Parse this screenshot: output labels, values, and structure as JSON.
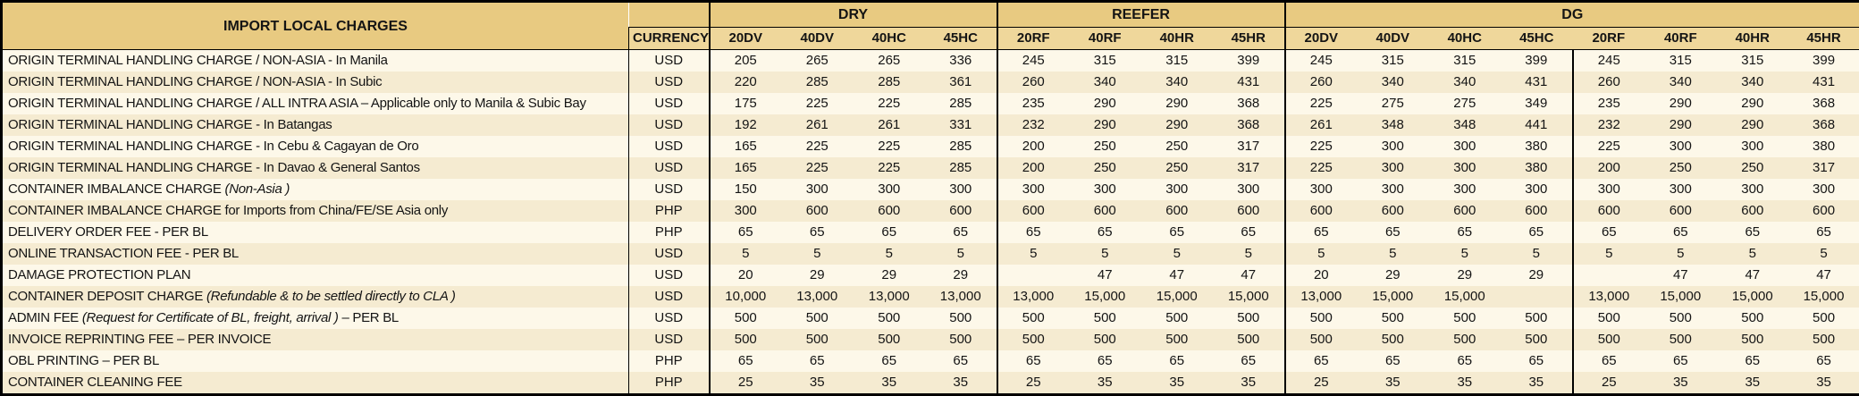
{
  "table": {
    "title": "IMPORT LOCAL CHARGES",
    "currency_header": "CURRENCY",
    "groups": [
      {
        "label": "DRY",
        "columns": [
          "20DV",
          "40DV",
          "40HC",
          "45HC"
        ]
      },
      {
        "label": "REEFER",
        "columns": [
          "20RF",
          "40RF",
          "40HR",
          "45HR"
        ]
      },
      {
        "label": "DG",
        "columns": [
          "20DV",
          "40DV",
          "40HC",
          "45HC",
          "20RF",
          "40RF",
          "40HR",
          "45HR"
        ]
      }
    ],
    "rows": [
      {
        "charge": "ORIGIN TERMINAL HANDLING CHARGE / NON-ASIA - In Manila",
        "charge_italic": "",
        "charge_suffix": "",
        "currency": "USD",
        "values": [
          "205",
          "265",
          "265",
          "336",
          "245",
          "315",
          "315",
          "399",
          "245",
          "315",
          "315",
          "399",
          "245",
          "315",
          "315",
          "399"
        ]
      },
      {
        "charge": "ORIGIN TERMINAL HANDLING CHARGE / NON-ASIA - In Subic",
        "charge_italic": "",
        "charge_suffix": "",
        "currency": "USD",
        "values": [
          "220",
          "285",
          "285",
          "361",
          "260",
          "340",
          "340",
          "431",
          "260",
          "340",
          "340",
          "431",
          "260",
          "340",
          "340",
          "431"
        ]
      },
      {
        "charge": "ORIGIN TERMINAL HANDLING CHARGE / ALL INTRA ASIA – Applicable only to Manila & Subic Bay",
        "charge_italic": "",
        "charge_suffix": "",
        "currency": "USD",
        "values": [
          "175",
          "225",
          "225",
          "285",
          "235",
          "290",
          "290",
          "368",
          "225",
          "275",
          "275",
          "349",
          "235",
          "290",
          "290",
          "368"
        ]
      },
      {
        "charge": "ORIGIN TERMINAL HANDLING CHARGE - In Batangas",
        "charge_italic": "",
        "charge_suffix": "",
        "currency": "USD",
        "values": [
          "192",
          "261",
          "261",
          "331",
          "232",
          "290",
          "290",
          "368",
          "261",
          "348",
          "348",
          "441",
          "232",
          "290",
          "290",
          "368"
        ]
      },
      {
        "charge": "ORIGIN TERMINAL HANDLING CHARGE - In Cebu & Cagayan de Oro",
        "charge_italic": "",
        "charge_suffix": "",
        "currency": "USD",
        "values": [
          "165",
          "225",
          "225",
          "285",
          "200",
          "250",
          "250",
          "317",
          "225",
          "300",
          "300",
          "380",
          "225",
          "300",
          "300",
          "380"
        ]
      },
      {
        "charge": "ORIGIN TERMINAL HANDLING CHARGE - In Davao & General Santos",
        "charge_italic": "",
        "charge_suffix": "",
        "currency": "USD",
        "values": [
          "165",
          "225",
          "225",
          "285",
          "200",
          "250",
          "250",
          "317",
          "225",
          "300",
          "300",
          "380",
          "200",
          "250",
          "250",
          "317"
        ]
      },
      {
        "charge": "CONTAINER IMBALANCE CHARGE ",
        "charge_italic": "(Non-Asia )",
        "charge_suffix": "",
        "currency": "USD",
        "values": [
          "150",
          "300",
          "300",
          "300",
          "300",
          "300",
          "300",
          "300",
          "300",
          "300",
          "300",
          "300",
          "300",
          "300",
          "300",
          "300"
        ]
      },
      {
        "charge": "CONTAINER IMBALANCE CHARGE for Imports from China/FE/SE Asia only",
        "charge_italic": "",
        "charge_suffix": "",
        "currency": "PHP",
        "values": [
          "300",
          "600",
          "600",
          "600",
          "600",
          "600",
          "600",
          "600",
          "600",
          "600",
          "600",
          "600",
          "600",
          "600",
          "600",
          "600"
        ]
      },
      {
        "charge": "DELIVERY ORDER FEE - PER BL",
        "charge_italic": "",
        "charge_suffix": "",
        "currency": "PHP",
        "values": [
          "65",
          "65",
          "65",
          "65",
          "65",
          "65",
          "65",
          "65",
          "65",
          "65",
          "65",
          "65",
          "65",
          "65",
          "65",
          "65"
        ]
      },
      {
        "charge": "ONLINE TRANSACTION FEE - PER BL",
        "charge_italic": "",
        "charge_suffix": "",
        "currency": "USD",
        "values": [
          "5",
          "5",
          "5",
          "5",
          "5",
          "5",
          "5",
          "5",
          "5",
          "5",
          "5",
          "5",
          "5",
          "5",
          "5",
          "5"
        ]
      },
      {
        "charge": "DAMAGE PROTECTION PLAN",
        "charge_italic": "",
        "charge_suffix": "",
        "currency": "USD",
        "values": [
          "20",
          "29",
          "29",
          "29",
          "",
          "47",
          "47",
          "47",
          "20",
          "29",
          "29",
          "29",
          "",
          "47",
          "47",
          "47"
        ]
      },
      {
        "charge": "CONTAINER DEPOSIT CHARGE ",
        "charge_italic": "(Refundable & to be settled directly to CLA )",
        "charge_suffix": "",
        "currency": "USD",
        "values": [
          "10,000",
          "13,000",
          "13,000",
          "13,000",
          "13,000",
          "15,000",
          "15,000",
          "15,000",
          "13,000",
          "15,000",
          "15,000",
          "",
          "13,000",
          "15,000",
          "15,000",
          "15,000"
        ]
      },
      {
        "charge": "ADMIN FEE ",
        "charge_italic": "(Request for Certificate of BL, freight, arrival )",
        "charge_suffix": " – PER BL",
        "currency": "USD",
        "values": [
          "500",
          "500",
          "500",
          "500",
          "500",
          "500",
          "500",
          "500",
          "500",
          "500",
          "500",
          "500",
          "500",
          "500",
          "500",
          "500"
        ]
      },
      {
        "charge": "INVOICE REPRINTING FEE – PER INVOICE",
        "charge_italic": "",
        "charge_suffix": "",
        "currency": "USD",
        "values": [
          "500",
          "500",
          "500",
          "500",
          "500",
          "500",
          "500",
          "500",
          "500",
          "500",
          "500",
          "500",
          "500",
          "500",
          "500",
          "500"
        ]
      },
      {
        "charge": "OBL PRINTING – PER BL",
        "charge_italic": "",
        "charge_suffix": "",
        "currency": "PHP",
        "values": [
          "65",
          "65",
          "65",
          "65",
          "65",
          "65",
          "65",
          "65",
          "65",
          "65",
          "65",
          "65",
          "65",
          "65",
          "65",
          "65"
        ]
      },
      {
        "charge": "CONTAINER CLEANING FEE",
        "charge_italic": "",
        "charge_suffix": "",
        "currency": "PHP",
        "values": [
          "25",
          "35",
          "35",
          "35",
          "25",
          "35",
          "35",
          "35",
          "25",
          "35",
          "35",
          "35",
          "25",
          "35",
          "35",
          "35"
        ]
      }
    ]
  },
  "colors": {
    "header_tan": "#E8CA81",
    "subheader_tan": "#EFD79B",
    "row_light": "#FDF8E9",
    "row_dark": "#F5EBD1",
    "border": "#000000",
    "text": "#141414"
  }
}
